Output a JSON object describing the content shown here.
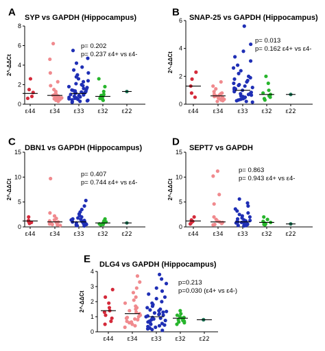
{
  "chart_data": [
    {
      "panel": "A",
      "type": "scatter",
      "title": "SYP vs GAPDH (Hippocampus)",
      "ylabel": "2^-ΔΔCt",
      "categories": [
        "ε44",
        "ε34",
        "ε33",
        "ε32",
        "ε22"
      ],
      "yticks": [
        0,
        2,
        4,
        6,
        8
      ],
      "ylim": [
        0,
        8
      ],
      "stats": [
        "p= 0.202",
        "p= 0.237 ε4+ vs ε4-"
      ],
      "colors": [
        "#d42a3a",
        "#f08a8e",
        "#1f2fb5",
        "#27b52c",
        "#1f7a5a"
      ],
      "medians": [
        1.1,
        0.9,
        1.1,
        0.8,
        1.3
      ],
      "points": [
        [
          2.6,
          1.5,
          1.2,
          0.8,
          0.6
        ],
        [
          6.2,
          4.6,
          3.2,
          2.3,
          1.9,
          1.5,
          1.3,
          1.1,
          1.0,
          0.9,
          0.85,
          0.8,
          0.7,
          0.65,
          0.6,
          0.55,
          0.5,
          0.45,
          0.4,
          0.3
        ],
        [
          5.5,
          4.7,
          4.2,
          3.8,
          3.5,
          3.2,
          3.0,
          2.8,
          2.6,
          2.4,
          2.3,
          2.1,
          2.0,
          1.9,
          1.8,
          1.7,
          1.6,
          1.5,
          1.45,
          1.4,
          1.35,
          1.3,
          1.25,
          1.2,
          1.15,
          1.1,
          1.05,
          1.0,
          0.95,
          0.9,
          0.85,
          0.8,
          0.75,
          0.7,
          0.65,
          0.6,
          0.55,
          0.5,
          0.45,
          0.4,
          0.35,
          0.3,
          0.25,
          0.2
        ],
        [
          2.6,
          1.8,
          1.3,
          1.0,
          0.9,
          0.8,
          0.7,
          0.6,
          0.5,
          0.4
        ],
        [
          1.3
        ]
      ]
    },
    {
      "panel": "B",
      "type": "scatter",
      "title": "SNAP-25 vs GAPDH (Hippocampus)",
      "ylabel": "2^-ΔΔCt",
      "categories": [
        "ε44",
        "ε34",
        "ε33",
        "ε32",
        "ε22"
      ],
      "yticks": [
        0,
        2,
        4,
        6
      ],
      "ylim": [
        0,
        6
      ],
      "stats": [
        "p= 0.013",
        "p= 0.162 ε4+ vs ε4-"
      ],
      "colors": [
        "#d42a3a",
        "#f08a8e",
        "#1f2fb5",
        "#27b52c",
        "#1f7a5a"
      ],
      "medians": [
        1.3,
        0.6,
        1.0,
        0.7,
        0.7
      ],
      "points": [
        [
          2.3,
          1.8,
          1.3,
          0.8,
          0.5
        ],
        [
          1.6,
          1.3,
          1.1,
          0.9,
          0.8,
          0.75,
          0.7,
          0.65,
          0.6,
          0.55,
          0.5,
          0.45,
          0.4,
          0.35,
          0.3,
          0.25,
          0.2
        ],
        [
          5.6,
          4.3,
          3.8,
          3.4,
          3.1,
          2.8,
          2.6,
          2.4,
          2.2,
          2.0,
          1.9,
          1.8,
          1.7,
          1.6,
          1.5,
          1.4,
          1.35,
          1.3,
          1.2,
          1.15,
          1.1,
          1.05,
          1.0,
          0.95,
          0.9,
          0.85,
          0.8,
          0.75,
          0.7,
          0.65,
          0.6,
          0.55,
          0.5,
          0.45,
          0.4,
          0.35,
          0.3,
          0.25,
          0.2,
          0.15
        ],
        [
          2.0,
          1.5,
          1.0,
          0.8,
          0.7,
          0.6,
          0.5,
          0.4,
          0.3
        ],
        [
          0.7
        ]
      ]
    },
    {
      "panel": "C",
      "type": "scatter",
      "title": "DBN1 vs GAPDH (Hippocampus)",
      "ylabel": "2^-ΔΔCt",
      "categories": [
        "ε44",
        "ε34",
        "ε33",
        "ε32",
        "ε22"
      ],
      "yticks": [
        0,
        5,
        10,
        15
      ],
      "ylim": [
        0,
        15
      ],
      "stats": [
        "p= 0.407",
        "p= 0.744 ε4+ vs ε4-"
      ],
      "colors": [
        "#d42a3a",
        "#f08a8e",
        "#1f2fb5",
        "#27b52c",
        "#1f7a5a"
      ],
      "medians": [
        1.2,
        1.0,
        1.0,
        0.8,
        0.8
      ],
      "points": [
        [
          2.0,
          1.3,
          1.1,
          0.9,
          0.7
        ],
        [
          9.7,
          2.8,
          2.2,
          1.7,
          1.4,
          1.2,
          1.0,
          0.9,
          0.8,
          0.7,
          0.6,
          0.5,
          0.4,
          0.3
        ],
        [
          5.3,
          4.2,
          3.5,
          3.0,
          2.6,
          2.3,
          2.0,
          1.8,
          1.6,
          1.5,
          1.4,
          1.3,
          1.2,
          1.1,
          1.0,
          0.9,
          0.85,
          0.8,
          0.7,
          0.6,
          0.5,
          0.4,
          0.3,
          0.25,
          0.2
        ],
        [
          1.6,
          1.2,
          1.0,
          0.8,
          0.7,
          0.6,
          0.5,
          0.4
        ],
        [
          0.8
        ]
      ]
    },
    {
      "panel": "D",
      "type": "scatter",
      "title": "SEPT7 vs GAPDH",
      "ylabel": "2^-ΔΔCt",
      "categories": [
        "ε44",
        "ε34",
        "ε33",
        "ε32",
        "ε22"
      ],
      "yticks": [
        0,
        5,
        10,
        15
      ],
      "ylim": [
        0,
        15
      ],
      "stats": [
        "p= 0.863",
        "p= 0.943 ε4+ vs ε4-"
      ],
      "colors": [
        "#d42a3a",
        "#f08a8e",
        "#1f2fb5",
        "#27b52c",
        "#1f7a5a"
      ],
      "medians": [
        1.2,
        1.0,
        1.0,
        0.9,
        0.6
      ],
      "points": [
        [
          2.0,
          1.4,
          1.1,
          0.8,
          0.6
        ],
        [
          11.2,
          10.2,
          6.5,
          4.6,
          2.0,
          1.5,
          1.2,
          1.0,
          0.9,
          0.7,
          0.5,
          0.4
        ],
        [
          5.6,
          4.8,
          4.2,
          3.6,
          3.2,
          2.8,
          2.5,
          2.2,
          2.0,
          1.8,
          1.6,
          1.4,
          1.3,
          1.2,
          1.1,
          1.0,
          0.9,
          0.8,
          0.7,
          0.6,
          0.5,
          0.4,
          0.3,
          0.25,
          0.2
        ],
        [
          2.0,
          1.5,
          1.1,
          0.9,
          0.8,
          0.6,
          0.5,
          0.4
        ],
        [
          0.6
        ]
      ]
    },
    {
      "panel": "E",
      "type": "scatter",
      "title": "DLG4 vs GAPDH (Hippocampus)",
      "ylabel": "2^-ΔΔCt",
      "categories": [
        "ε44",
        "ε34",
        "ε33",
        "ε32",
        "ε22"
      ],
      "yticks": [
        0,
        1,
        2,
        3,
        4
      ],
      "ylim": [
        0,
        4
      ],
      "stats": [
        "p=0.213",
        "p=0.030 (ε4+ vs ε4-)"
      ],
      "colors": [
        "#d42a3a",
        "#f08a8e",
        "#1f2fb5",
        "#27b52c",
        "#1f7a5a"
      ],
      "medians": [
        1.4,
        1.2,
        1.0,
        0.9,
        0.8
      ],
      "points": [
        [
          2.8,
          2.3,
          1.9,
          1.6,
          1.4,
          1.3,
          1.1,
          0.9,
          0.7,
          0.5
        ],
        [
          3.7,
          3.3,
          2.9,
          2.6,
          2.3,
          2.1,
          1.9,
          1.7,
          1.6,
          1.5,
          1.4,
          1.3,
          1.2,
          1.1,
          1.0,
          0.95,
          0.9,
          0.85,
          0.8,
          0.7,
          0.65,
          0.6,
          0.5,
          0.4,
          0.3
        ],
        [
          3.8,
          3.5,
          3.2,
          2.9,
          2.7,
          2.5,
          2.3,
          2.2,
          2.0,
          1.9,
          1.8,
          1.7,
          1.6,
          1.5,
          1.45,
          1.4,
          1.35,
          1.3,
          1.25,
          1.2,
          1.15,
          1.1,
          1.05,
          1.0,
          0.95,
          0.9,
          0.85,
          0.8,
          0.75,
          0.7,
          0.65,
          0.6,
          0.55,
          0.5,
          0.45,
          0.4,
          0.35,
          0.3,
          0.25,
          0.2,
          0.15,
          0.1
        ],
        [
          1.4,
          1.2,
          1.1,
          1.0,
          0.95,
          0.9,
          0.85,
          0.8,
          0.75,
          0.7,
          0.65,
          0.6,
          0.5
        ],
        [
          0.8,
          0.8
        ]
      ]
    }
  ]
}
